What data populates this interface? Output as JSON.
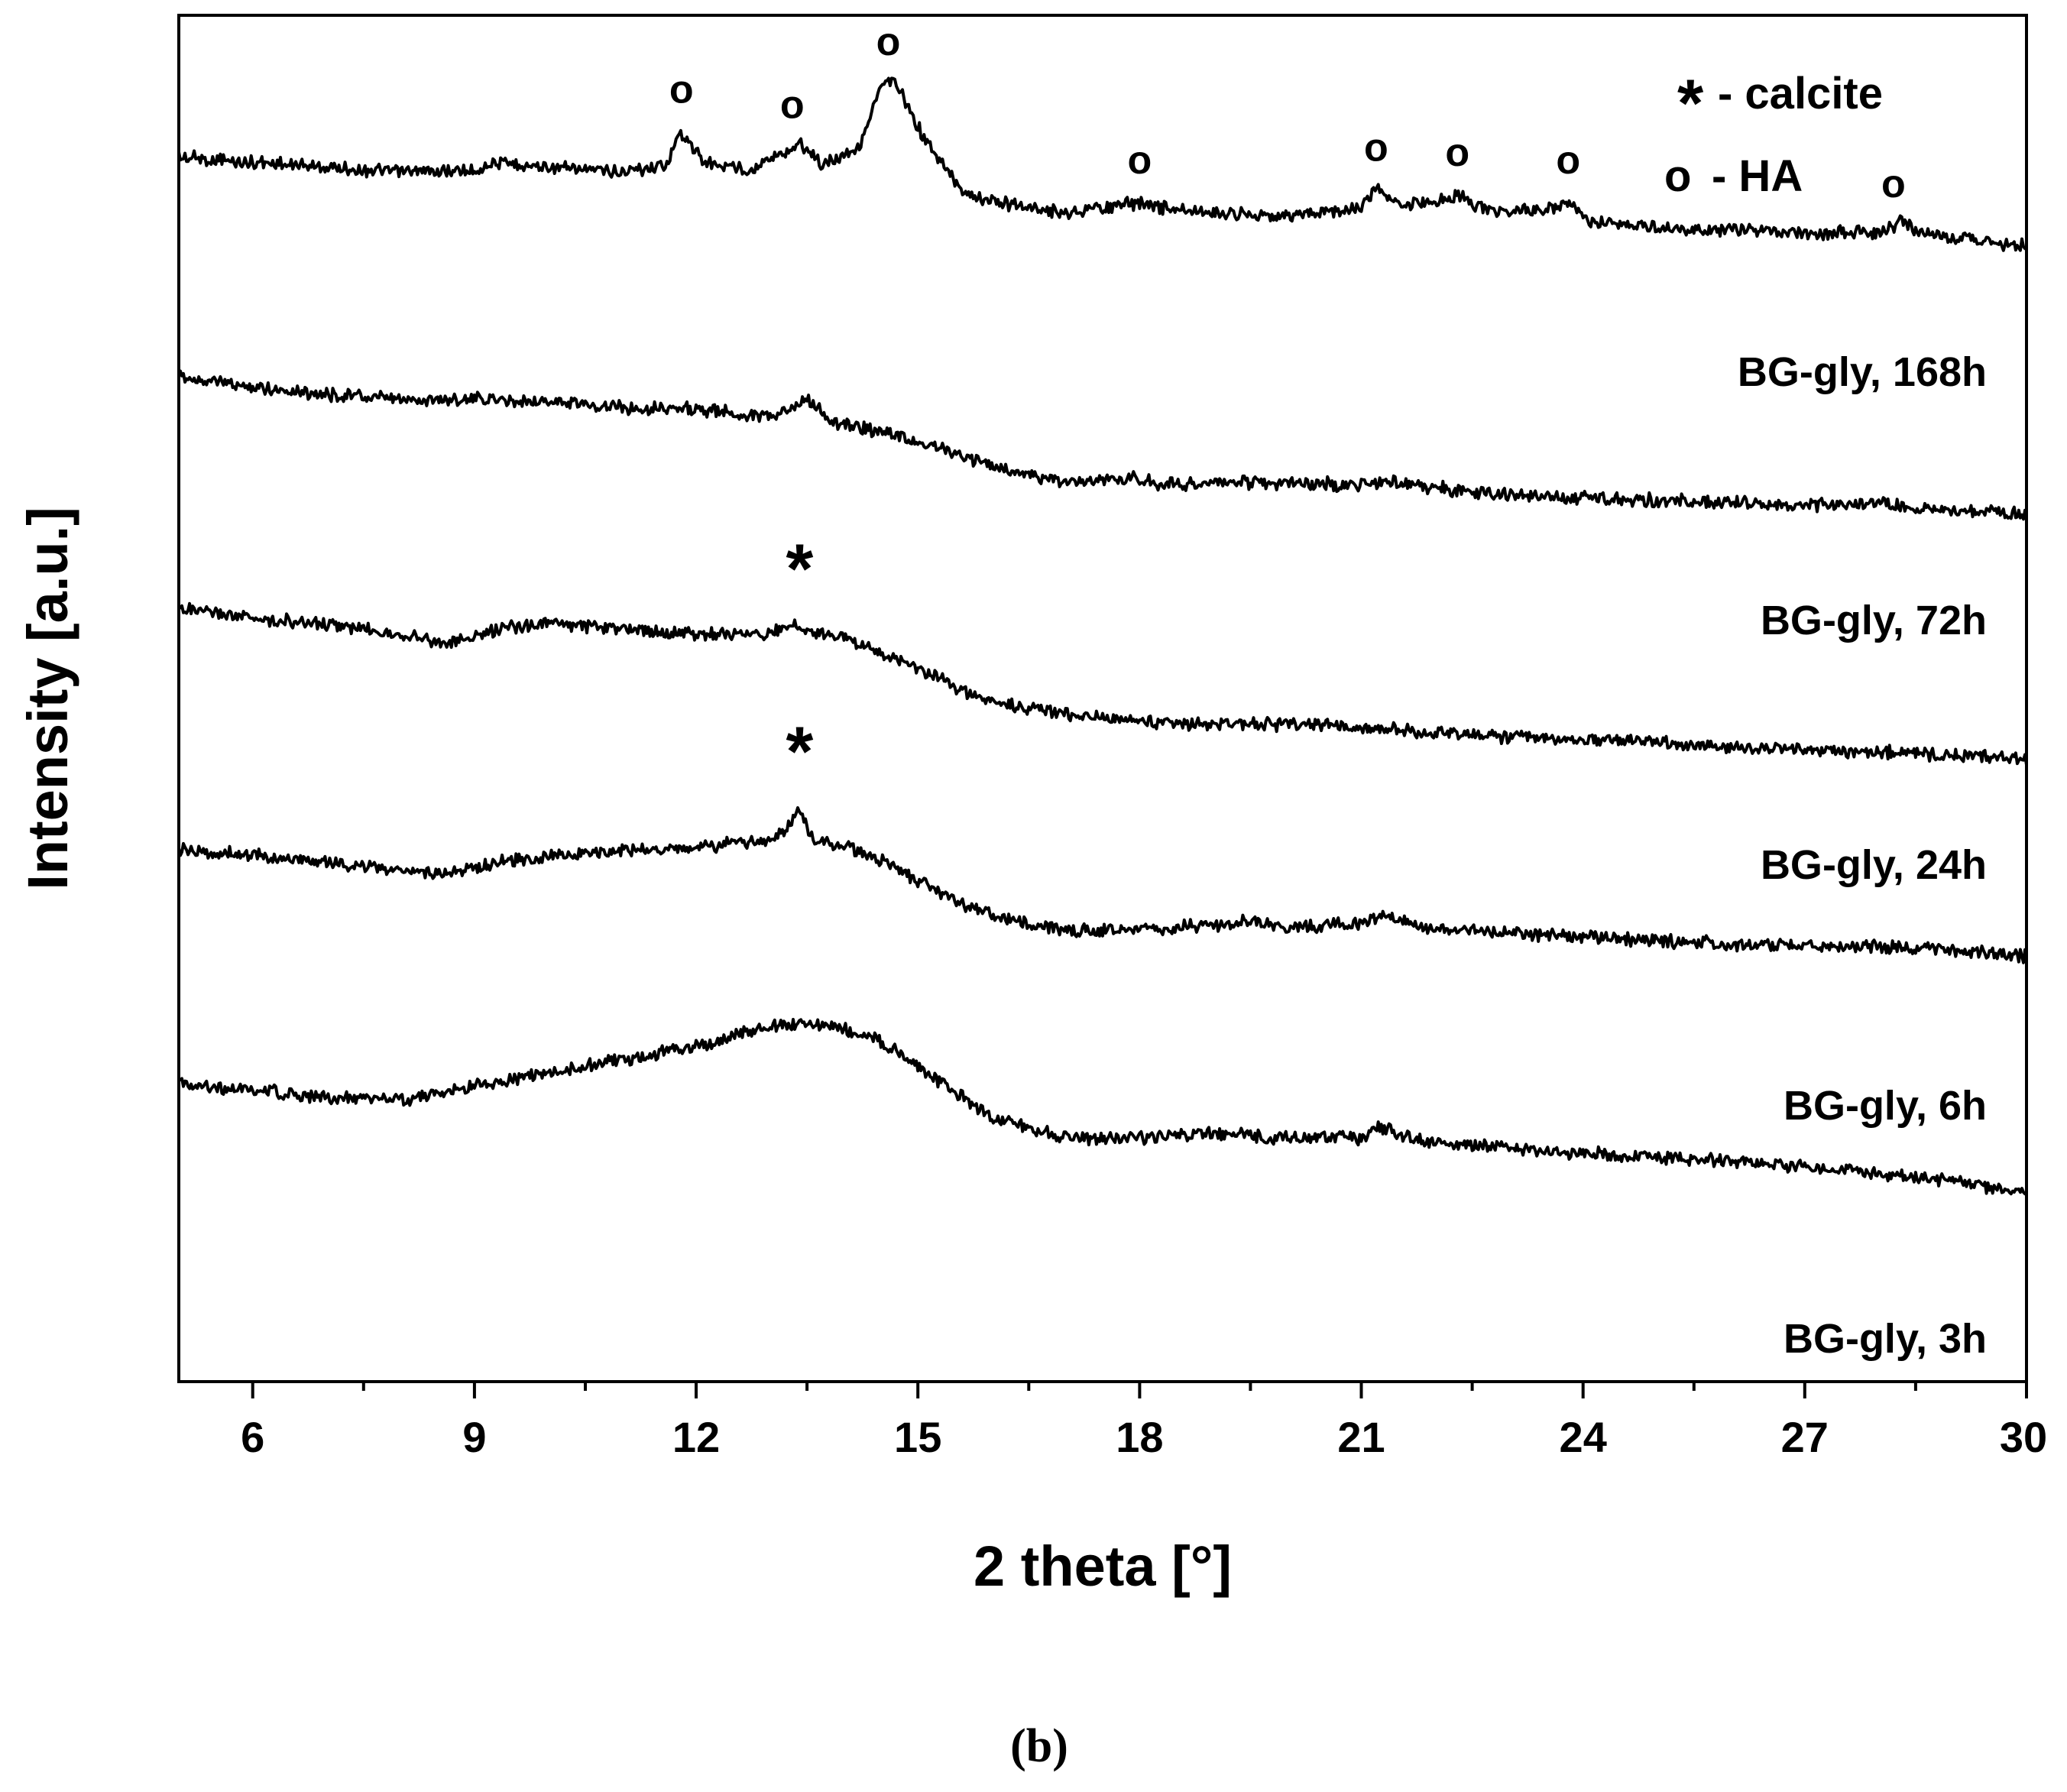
{
  "chart_data": {
    "type": "line",
    "xlabel": "2 theta [°]",
    "ylabel": "Intensity [a.u.]",
    "xlim": [
      5,
      30
    ],
    "x_ticks": [
      6,
      9,
      12,
      15,
      18,
      21,
      24,
      27,
      30
    ],
    "y_ticks_shown": false,
    "panel_label": "(b)",
    "legend": {
      "placement": "top-right",
      "entries": [
        {
          "symbol": "*",
          "label": "- calcite"
        },
        {
          "symbol": "o",
          "label": "- HA"
        }
      ]
    },
    "series": [
      {
        "name": "BG-gly, 168h",
        "points": [
          [
            5,
            0.68
          ],
          [
            6,
            0.66
          ],
          [
            7,
            0.64
          ],
          [
            8,
            0.62
          ],
          [
            9,
            0.63
          ],
          [
            9.3,
            0.66
          ],
          [
            10,
            0.64
          ],
          [
            11,
            0.62
          ],
          [
            11.6,
            0.65
          ],
          [
            11.8,
            0.78
          ],
          [
            12.1,
            0.66
          ],
          [
            12.7,
            0.63
          ],
          [
            13.2,
            0.7
          ],
          [
            13.4,
            0.74
          ],
          [
            13.7,
            0.65
          ],
          [
            14.2,
            0.72
          ],
          [
            14.5,
            0.96
          ],
          [
            14.7,
            0.98
          ],
          [
            14.9,
            0.85
          ],
          [
            15.2,
            0.7
          ],
          [
            15.6,
            0.55
          ],
          [
            16,
            0.5
          ],
          [
            17,
            0.46
          ],
          [
            18,
            0.5
          ],
          [
            18.3,
            0.48
          ],
          [
            19,
            0.46
          ],
          [
            20,
            0.45
          ],
          [
            21,
            0.48
          ],
          [
            21.2,
            0.55
          ],
          [
            21.5,
            0.49
          ],
          [
            22,
            0.5
          ],
          [
            22.3,
            0.53
          ],
          [
            22.7,
            0.47
          ],
          [
            23.5,
            0.47
          ],
          [
            23.8,
            0.5
          ],
          [
            24.1,
            0.42
          ],
          [
            25,
            0.4
          ],
          [
            26,
            0.39
          ],
          [
            27,
            0.38
          ],
          [
            28,
            0.38
          ],
          [
            28.3,
            0.42
          ],
          [
            28.6,
            0.38
          ],
          [
            29,
            0.36
          ],
          [
            30,
            0.33
          ]
        ]
      },
      {
        "name": "BG-gly, 72h",
        "points": [
          [
            5,
            0.84
          ],
          [
            6,
            0.8
          ],
          [
            7,
            0.77
          ],
          [
            8,
            0.75
          ],
          [
            9,
            0.75
          ],
          [
            10,
            0.74
          ],
          [
            11,
            0.72
          ],
          [
            12,
            0.71
          ],
          [
            13,
            0.68
          ],
          [
            13.3,
            0.71
          ],
          [
            13.5,
            0.76
          ],
          [
            13.8,
            0.66
          ],
          [
            14.5,
            0.62
          ],
          [
            15,
            0.58
          ],
          [
            15.5,
            0.54
          ],
          [
            16,
            0.48
          ],
          [
            17,
            0.42
          ],
          [
            17.9,
            0.44
          ],
          [
            18.3,
            0.41
          ],
          [
            19,
            0.42
          ],
          [
            20,
            0.42
          ],
          [
            21,
            0.41
          ],
          [
            21.5,
            0.42
          ],
          [
            22,
            0.4
          ],
          [
            23,
            0.37
          ],
          [
            24,
            0.36
          ],
          [
            25,
            0.35
          ],
          [
            26,
            0.34
          ],
          [
            27,
            0.33
          ],
          [
            28,
            0.34
          ],
          [
            28.5,
            0.31
          ],
          [
            30,
            0.3
          ]
        ]
      },
      {
        "name": "BG-gly, 24h",
        "points": [
          [
            5,
            0.86
          ],
          [
            6,
            0.82
          ],
          [
            7,
            0.8
          ],
          [
            8,
            0.76
          ],
          [
            8.6,
            0.72
          ],
          [
            9.5,
            0.79
          ],
          [
            10,
            0.8
          ],
          [
            11,
            0.78
          ],
          [
            12,
            0.76
          ],
          [
            13,
            0.76
          ],
          [
            13.3,
            0.8
          ],
          [
            13.5,
            0.77
          ],
          [
            14,
            0.75
          ],
          [
            14.5,
            0.68
          ],
          [
            15,
            0.62
          ],
          [
            15.5,
            0.55
          ],
          [
            16,
            0.49
          ],
          [
            17,
            0.44
          ],
          [
            18,
            0.41
          ],
          [
            19,
            0.4
          ],
          [
            20,
            0.4
          ],
          [
            21,
            0.39
          ],
          [
            22,
            0.37
          ],
          [
            23,
            0.35
          ],
          [
            24,
            0.34
          ],
          [
            25,
            0.33
          ],
          [
            26,
            0.31
          ],
          [
            27,
            0.3
          ],
          [
            28,
            0.29
          ],
          [
            29,
            0.28
          ],
          [
            30,
            0.26
          ]
        ]
      },
      {
        "name": "BG-gly, 6h",
        "points": [
          [
            5,
            0.84
          ],
          [
            6,
            0.82
          ],
          [
            7,
            0.79
          ],
          [
            8,
            0.76
          ],
          [
            8.6,
            0.75
          ],
          [
            9.5,
            0.8
          ],
          [
            10,
            0.82
          ],
          [
            11,
            0.84
          ],
          [
            12,
            0.85
          ],
          [
            13,
            0.88
          ],
          [
            13.2,
            0.92
          ],
          [
            13.4,
            1.0
          ],
          [
            13.6,
            0.88
          ],
          [
            14,
            0.86
          ],
          [
            14.5,
            0.8
          ],
          [
            15,
            0.72
          ],
          [
            15.5,
            0.64
          ],
          [
            16,
            0.58
          ],
          [
            17,
            0.52
          ],
          [
            18,
            0.53
          ],
          [
            19,
            0.54
          ],
          [
            19.5,
            0.56
          ],
          [
            20,
            0.53
          ],
          [
            21,
            0.55
          ],
          [
            21.3,
            0.58
          ],
          [
            22,
            0.53
          ],
          [
            23,
            0.51
          ],
          [
            24,
            0.5
          ],
          [
            25,
            0.48
          ],
          [
            26,
            0.47
          ],
          [
            27,
            0.46
          ],
          [
            28,
            0.46
          ],
          [
            29,
            0.44
          ],
          [
            30,
            0.42
          ]
        ]
      },
      {
        "name": "BG-gly, 3h",
        "points": [
          [
            5,
            0.86
          ],
          [
            6,
            0.83
          ],
          [
            7,
            0.8
          ],
          [
            8,
            0.79
          ],
          [
            9,
            0.84
          ],
          [
            10,
            0.9
          ],
          [
            11,
            0.95
          ],
          [
            12,
            1.0
          ],
          [
            13,
            1.08
          ],
          [
            13.5,
            1.1
          ],
          [
            14,
            1.07
          ],
          [
            14.5,
            1.02
          ],
          [
            15,
            0.92
          ],
          [
            15.5,
            0.82
          ],
          [
            16,
            0.72
          ],
          [
            17,
            0.64
          ],
          [
            18,
            0.64
          ],
          [
            19,
            0.66
          ],
          [
            20,
            0.64
          ],
          [
            21,
            0.64
          ],
          [
            21.2,
            0.68
          ],
          [
            22,
            0.62
          ],
          [
            23,
            0.6
          ],
          [
            24,
            0.58
          ],
          [
            25,
            0.56
          ],
          [
            26,
            0.55
          ],
          [
            27,
            0.52
          ],
          [
            28,
            0.5
          ],
          [
            29,
            0.47
          ],
          [
            30,
            0.42
          ]
        ]
      }
    ],
    "annotations": [
      {
        "series": "BG-gly, 168h",
        "symbol": "o",
        "x": [
          11.8,
          13.3,
          14.6,
          18.0,
          21.2,
          22.3,
          23.8,
          28.2
        ]
      },
      {
        "series": "BG-gly, 24h",
        "symbol": "*",
        "x": [
          13.4
        ]
      },
      {
        "series": "BG-gly, 6h",
        "symbol": "*",
        "x": [
          13.4
        ]
      }
    ]
  }
}
